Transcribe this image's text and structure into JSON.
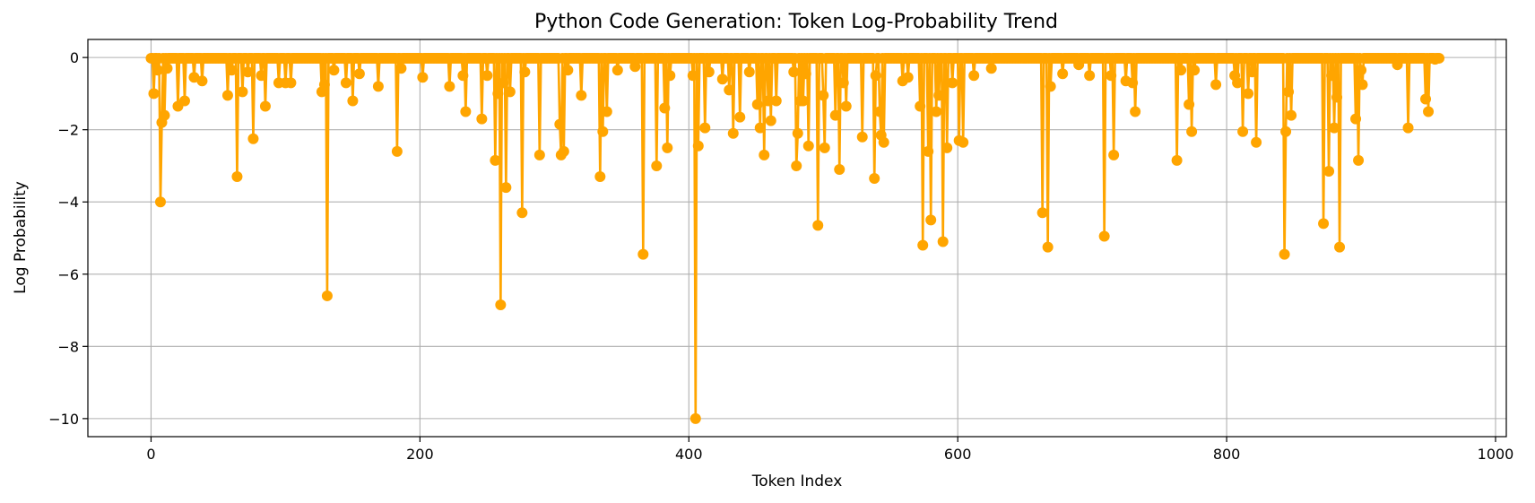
{
  "chart_data": {
    "type": "line",
    "title": "Python Code Generation: Token Log-Probability Trend",
    "xlabel": "Token Index",
    "ylabel": "Log Probability",
    "xlim": [
      -47,
      1008
    ],
    "ylim": [
      -10.5,
      0.5
    ],
    "xticks": [
      0,
      200,
      400,
      600,
      800,
      1000
    ],
    "yticks": [
      0,
      -2,
      -4,
      -6,
      -8,
      -10
    ],
    "grid": true,
    "n_tokens": 959,
    "baseline_logprob": -0.02,
    "series": [
      {
        "color": "#FFA500",
        "marker": "circle",
        "dips": [
          [
            2,
            -1.0
          ],
          [
            5,
            -0.35
          ],
          [
            7,
            -4.0
          ],
          [
            8,
            -1.8
          ],
          [
            10,
            -1.6
          ],
          [
            12,
            -0.3
          ],
          [
            20,
            -1.35
          ],
          [
            25,
            -1.2
          ],
          [
            32,
            -0.55
          ],
          [
            38,
            -0.65
          ],
          [
            57,
            -1.05
          ],
          [
            60,
            -0.35
          ],
          [
            64,
            -3.3
          ],
          [
            68,
            -0.95
          ],
          [
            72,
            -0.4
          ],
          [
            76,
            -2.25
          ],
          [
            82,
            -0.5
          ],
          [
            85,
            -1.35
          ],
          [
            95,
            -0.7
          ],
          [
            100,
            -0.7
          ],
          [
            104,
            -0.7
          ],
          [
            127,
            -0.95
          ],
          [
            129,
            -0.75
          ],
          [
            131,
            -6.6
          ],
          [
            136,
            -0.35
          ],
          [
            145,
            -0.7
          ],
          [
            150,
            -1.2
          ],
          [
            155,
            -0.45
          ],
          [
            169,
            -0.8
          ],
          [
            183,
            -2.6
          ],
          [
            186,
            -0.3
          ],
          [
            202,
            -0.55
          ],
          [
            222,
            -0.8
          ],
          [
            232,
            -0.5
          ],
          [
            234,
            -1.5
          ],
          [
            246,
            -1.7
          ],
          [
            250,
            -0.5
          ],
          [
            256,
            -2.85
          ],
          [
            258,
            -1.0
          ],
          [
            260,
            -6.85
          ],
          [
            262,
            -0.7
          ],
          [
            264,
            -3.6
          ],
          [
            267,
            -0.95
          ],
          [
            276,
            -4.3
          ],
          [
            278,
            -0.4
          ],
          [
            289,
            -2.7
          ],
          [
            304,
            -1.85
          ],
          [
            305,
            -2.7
          ],
          [
            307,
            -2.6
          ],
          [
            310,
            -0.35
          ],
          [
            320,
            -1.05
          ],
          [
            334,
            -3.3
          ],
          [
            336,
            -2.05
          ],
          [
            339,
            -1.5
          ],
          [
            347,
            -0.35
          ],
          [
            360,
            -0.25
          ],
          [
            366,
            -5.45
          ],
          [
            376,
            -3.0
          ],
          [
            382,
            -1.4
          ],
          [
            384,
            -2.5
          ],
          [
            386,
            -0.5
          ],
          [
            403,
            -0.5
          ],
          [
            405,
            -10.0
          ],
          [
            407,
            -2.45
          ],
          [
            412,
            -1.95
          ],
          [
            415,
            -0.4
          ],
          [
            425,
            -0.6
          ],
          [
            430,
            -0.9
          ],
          [
            433,
            -2.1
          ],
          [
            438,
            -1.65
          ],
          [
            445,
            -0.4
          ],
          [
            451,
            -1.3
          ],
          [
            453,
            -1.95
          ],
          [
            456,
            -2.7
          ],
          [
            459,
            -1.2
          ],
          [
            461,
            -1.75
          ],
          [
            465,
            -1.2
          ],
          [
            478,
            -0.4
          ],
          [
            480,
            -3.0
          ],
          [
            481,
            -2.1
          ],
          [
            483,
            -1.2
          ],
          [
            485,
            -1.2
          ],
          [
            487,
            -0.45
          ],
          [
            489,
            -2.45
          ],
          [
            496,
            -4.65
          ],
          [
            500,
            -1.05
          ],
          [
            501,
            -2.5
          ],
          [
            509,
            -1.6
          ],
          [
            512,
            -3.1
          ],
          [
            515,
            -0.7
          ],
          [
            517,
            -1.35
          ],
          [
            529,
            -2.2
          ],
          [
            538,
            -3.35
          ],
          [
            539,
            -0.5
          ],
          [
            542,
            -1.5
          ],
          [
            543,
            -2.15
          ],
          [
            545,
            -2.35
          ],
          [
            559,
            -0.65
          ],
          [
            563,
            -0.55
          ],
          [
            572,
            -1.35
          ],
          [
            574,
            -5.2
          ],
          [
            578,
            -2.6
          ],
          [
            580,
            -4.5
          ],
          [
            584,
            -1.5
          ],
          [
            586,
            -1.05
          ],
          [
            589,
            -5.1
          ],
          [
            592,
            -2.5
          ],
          [
            596,
            -0.7
          ],
          [
            601,
            -2.3
          ],
          [
            604,
            -2.35
          ],
          [
            612,
            -0.5
          ],
          [
            625,
            -0.3
          ],
          [
            663,
            -4.3
          ],
          [
            667,
            -5.25
          ],
          [
            669,
            -0.8
          ],
          [
            678,
            -0.45
          ],
          [
            690,
            -0.2
          ],
          [
            698,
            -0.5
          ],
          [
            709,
            -4.95
          ],
          [
            714,
            -0.5
          ],
          [
            716,
            -2.7
          ],
          [
            725,
            -0.65
          ],
          [
            730,
            -0.7
          ],
          [
            732,
            -1.5
          ],
          [
            763,
            -2.85
          ],
          [
            766,
            -0.35
          ],
          [
            772,
            -1.3
          ],
          [
            774,
            -2.05
          ],
          [
            776,
            -0.35
          ],
          [
            792,
            -0.75
          ],
          [
            806,
            -0.5
          ],
          [
            808,
            -0.7
          ],
          [
            812,
            -2.05
          ],
          [
            816,
            -1.0
          ],
          [
            819,
            -0.4
          ],
          [
            822,
            -2.35
          ],
          [
            843,
            -5.45
          ],
          [
            844,
            -2.05
          ],
          [
            846,
            -0.95
          ],
          [
            848,
            -1.6
          ],
          [
            872,
            -4.6
          ],
          [
            876,
            -3.15
          ],
          [
            878,
            -0.5
          ],
          [
            880,
            -1.95
          ],
          [
            882,
            -1.1
          ],
          [
            884,
            -5.25
          ],
          [
            896,
            -1.7
          ],
          [
            898,
            -2.85
          ],
          [
            900,
            -0.35
          ],
          [
            901,
            -0.75
          ],
          [
            927,
            -0.2
          ],
          [
            935,
            -1.95
          ],
          [
            948,
            -1.15
          ],
          [
            950,
            -1.5
          ],
          [
            955,
            -0.05
          ]
        ]
      }
    ]
  }
}
